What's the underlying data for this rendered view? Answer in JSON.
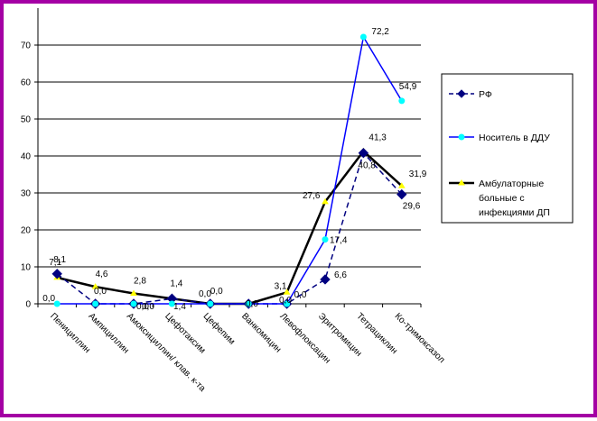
{
  "chart_data": {
    "type": "line",
    "categories": [
      "Пенициллин",
      "Ампициллин",
      "Амоксициллин/ клав. к-та",
      "Цефотаксим",
      "Цефепим",
      "Ванкомицин",
      "Левофлоксацин",
      "Эритромицин",
      "Тетрациклин",
      "Ко-тримоксазол"
    ],
    "ylim": [
      0,
      70
    ],
    "yticks": [
      0,
      10,
      20,
      30,
      40,
      50,
      60,
      70
    ],
    "grid": "horizontal",
    "legend_position": "right",
    "series": [
      {
        "name": "РФ",
        "color": "#000080",
        "line_style": "dashed",
        "marker": "diamond",
        "values": [
          8.1,
          0.0,
          0.0,
          1.4,
          0.0,
          0.0,
          0.0,
          6.6,
          40.8,
          29.6
        ],
        "labels": [
          "8,1",
          "0,0",
          "0,0",
          "1,4",
          "0,0",
          "0,0",
          "0,0",
          "6,6",
          "40,8",
          "29,6"
        ]
      },
      {
        "name": "Носитель в ДДУ",
        "color": "#0000ff",
        "line_style": "solid",
        "marker": "circle",
        "values": [
          0.0,
          0.0,
          0.0,
          0.0,
          0.0,
          0.0,
          0.0,
          17.4,
          72.2,
          54.9
        ],
        "labels": [
          "0,0",
          "0,0",
          "0,0",
          "0,0",
          "0,0",
          "0,0",
          "0,0",
          "17,4",
          "72,2",
          "54,9"
        ]
      },
      {
        "name": "Амбулаторные больные с инфекциями ДП",
        "legend_lines": [
          "Амбулаторные",
          "больные с",
          "инфекциями ДП"
        ],
        "color": "#000000",
        "line_style": "solid",
        "marker": "triangle",
        "values": [
          7.1,
          4.6,
          2.8,
          1.4,
          0.0,
          0.0,
          3.1,
          27.6,
          41.3,
          31.9
        ],
        "labels": [
          "7,1",
          "4,6",
          "2,8",
          "1,4",
          "0,0",
          "0,0",
          "3,1",
          "27,6",
          "41,3",
          "31,9"
        ]
      }
    ]
  }
}
